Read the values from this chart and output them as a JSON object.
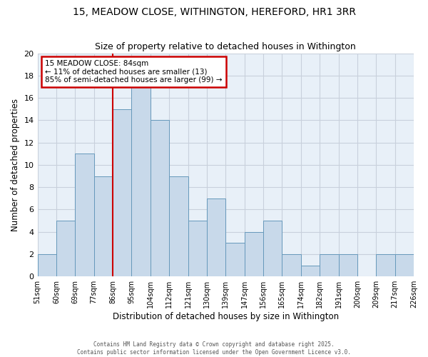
{
  "title": "15, MEADOW CLOSE, WITHINGTON, HEREFORD, HR1 3RR",
  "subtitle": "Size of property relative to detached houses in Withington",
  "xlabel": "Distribution of detached houses by size in Withington",
  "ylabel": "Number of detached properties",
  "tick_labels": [
    "51sqm",
    "60sqm",
    "69sqm",
    "77sqm",
    "86sqm",
    "95sqm",
    "104sqm",
    "112sqm",
    "121sqm",
    "130sqm",
    "139sqm",
    "147sqm",
    "156sqm",
    "165sqm",
    "174sqm",
    "182sqm",
    "191sqm",
    "200sqm",
    "209sqm",
    "217sqm",
    "226sqm"
  ],
  "counts": [
    2,
    5,
    11,
    9,
    15,
    17,
    14,
    9,
    5,
    7,
    3,
    4,
    5,
    2,
    1,
    2,
    2,
    0,
    2,
    2
  ],
  "bar_color": "#c8d9ea",
  "bar_edge_color": "#6699bb",
  "vline_bin_index": 4,
  "vline_color": "#cc0000",
  "annotation_title": "15 MEADOW CLOSE: 84sqm",
  "annotation_line2": "← 11% of detached houses are smaller (13)",
  "annotation_line3": "85% of semi-detached houses are larger (99) →",
  "annotation_box_edgecolor": "#cc0000",
  "annotation_bg_color": "#ffffff",
  "ylim": [
    0,
    20
  ],
  "yticks": [
    0,
    2,
    4,
    6,
    8,
    10,
    12,
    14,
    16,
    18,
    20
  ],
  "bg_color": "#e8f0f8",
  "grid_color": "#c8d0dc",
  "title_fontsize": 10,
  "subtitle_fontsize": 9,
  "footer_line1": "Contains HM Land Registry data © Crown copyright and database right 2025.",
  "footer_line2": "Contains public sector information licensed under the Open Government Licence v3.0."
}
